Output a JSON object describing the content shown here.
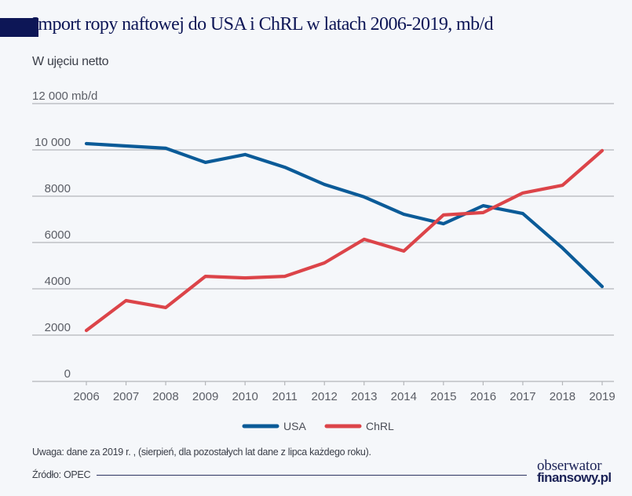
{
  "header": {
    "title": "Import ropy naftowej do USA i ChRL w latach 2006-2019, mb/d",
    "subtitle": "W ujęciu netto"
  },
  "footer": {
    "note": "Uwaga: dane za 2019 r. , (sierpień, dla pozostałych lat dane z lipca każdego roku).",
    "source": "Źródło: OPEC",
    "logo_line1": "obserwator",
    "logo_line2": "finansowy.pl"
  },
  "colors": {
    "usa": "#0b5b98",
    "chrl": "#dc4449",
    "grid": "#b4b6ba",
    "title": "#0d1656"
  },
  "chart_data": {
    "type": "line",
    "title": "Import ropy naftowej do USA i ChRL w latach 2006-2019, mb/d",
    "subtitle": "W ujęciu netto",
    "xlabel": "",
    "ylabel": "mb/d",
    "x": [
      "2006",
      "2007",
      "2008",
      "2009",
      "2010",
      "2011",
      "2012",
      "2013",
      "2014",
      "2015",
      "2016",
      "2017",
      "2018",
      "2019"
    ],
    "ylim": [
      0,
      12000
    ],
    "yticks": [
      0,
      2000,
      4000,
      6000,
      8000,
      10000,
      12000
    ],
    "ytick_labels": [
      "0",
      "2000",
      "4000",
      "6000",
      "8000",
      "10 000",
      "12 000 mb/d"
    ],
    "grid": true,
    "legend_position": "bottom-center",
    "series": [
      {
        "name": "USA",
        "color": "#0b5b98",
        "values": [
          10270,
          10170,
          10070,
          9460,
          9800,
          9250,
          8510,
          7970,
          7220,
          6810,
          7590,
          7250,
          5760,
          4100
        ]
      },
      {
        "name": "ChRL",
        "color": "#dc4449",
        "values": [
          2200,
          3490,
          3190,
          4540,
          4470,
          4540,
          5120,
          6140,
          5630,
          7190,
          7290,
          8140,
          8470,
          9970
        ]
      }
    ]
  }
}
